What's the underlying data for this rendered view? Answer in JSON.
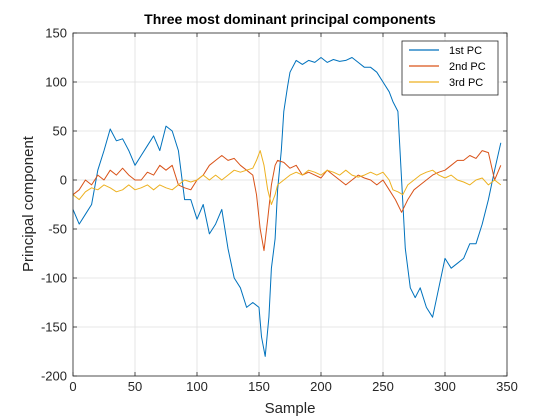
{
  "chart_data": {
    "type": "line",
    "title": "Three most dominant principal components",
    "xlabel": "Sample",
    "ylabel": "Principal component",
    "xlim": [
      0,
      350
    ],
    "ylim": [
      -200,
      150
    ],
    "xticks": [
      "0",
      "50",
      "100",
      "150",
      "200",
      "250",
      "300",
      "350"
    ],
    "yticks": [
      "-200",
      "-150",
      "-100",
      "-50",
      "0",
      "50",
      "100",
      "150"
    ],
    "grid": true,
    "legend_position": "top-right",
    "series": [
      {
        "name": "1st PC",
        "color": "#0072BD",
        "points": [
          [
            0,
            -30
          ],
          [
            5,
            -45
          ],
          [
            10,
            -35
          ],
          [
            15,
            -25
          ],
          [
            20,
            10
          ],
          [
            25,
            30
          ],
          [
            30,
            52
          ],
          [
            35,
            40
          ],
          [
            40,
            42
          ],
          [
            45,
            30
          ],
          [
            50,
            15
          ],
          [
            55,
            25
          ],
          [
            60,
            35
          ],
          [
            65,
            45
          ],
          [
            70,
            30
          ],
          [
            75,
            55
          ],
          [
            80,
            50
          ],
          [
            85,
            30
          ],
          [
            90,
            -20
          ],
          [
            95,
            -20
          ],
          [
            100,
            -40
          ],
          [
            105,
            -25
          ],
          [
            110,
            -55
          ],
          [
            115,
            -45
          ],
          [
            120,
            -30
          ],
          [
            125,
            -70
          ],
          [
            130,
            -100
          ],
          [
            135,
            -110
          ],
          [
            140,
            -130
          ],
          [
            145,
            -125
          ],
          [
            150,
            -130
          ],
          [
            152,
            -160
          ],
          [
            155,
            -180
          ],
          [
            158,
            -140
          ],
          [
            160,
            -90
          ],
          [
            163,
            -60
          ],
          [
            165,
            -10
          ],
          [
            168,
            30
          ],
          [
            170,
            70
          ],
          [
            173,
            95
          ],
          [
            175,
            110
          ],
          [
            180,
            122
          ],
          [
            185,
            118
          ],
          [
            190,
            122
          ],
          [
            195,
            120
          ],
          [
            200,
            125
          ],
          [
            205,
            120
          ],
          [
            210,
            123
          ],
          [
            215,
            121
          ],
          [
            220,
            122
          ],
          [
            225,
            125
          ],
          [
            230,
            120
          ],
          [
            235,
            115
          ],
          [
            240,
            115
          ],
          [
            245,
            110
          ],
          [
            250,
            100
          ],
          [
            255,
            90
          ],
          [
            258,
            80
          ],
          [
            262,
            70
          ],
          [
            265,
            0
          ],
          [
            268,
            -70
          ],
          [
            272,
            -110
          ],
          [
            276,
            -120
          ],
          [
            280,
            -110
          ],
          [
            285,
            -130
          ],
          [
            290,
            -140
          ],
          [
            295,
            -110
          ],
          [
            300,
            -80
          ],
          [
            305,
            -90
          ],
          [
            310,
            -85
          ],
          [
            315,
            -80
          ],
          [
            320,
            -65
          ],
          [
            325,
            -65
          ],
          [
            330,
            -45
          ],
          [
            335,
            -20
          ],
          [
            340,
            10
          ],
          [
            345,
            38
          ]
        ]
      },
      {
        "name": "2nd PC",
        "color": "#D95319",
        "points": [
          [
            0,
            -15
          ],
          [
            5,
            -10
          ],
          [
            10,
            0
          ],
          [
            15,
            -5
          ],
          [
            20,
            5
          ],
          [
            25,
            0
          ],
          [
            30,
            10
          ],
          [
            35,
            5
          ],
          [
            40,
            12
          ],
          [
            45,
            5
          ],
          [
            50,
            0
          ],
          [
            55,
            0
          ],
          [
            60,
            8
          ],
          [
            65,
            5
          ],
          [
            70,
            15
          ],
          [
            75,
            10
          ],
          [
            80,
            15
          ],
          [
            85,
            -5
          ],
          [
            90,
            -8
          ],
          [
            95,
            -10
          ],
          [
            100,
            0
          ],
          [
            105,
            5
          ],
          [
            110,
            15
          ],
          [
            115,
            20
          ],
          [
            120,
            25
          ],
          [
            125,
            20
          ],
          [
            130,
            22
          ],
          [
            135,
            15
          ],
          [
            140,
            10
          ],
          [
            145,
            5
          ],
          [
            148,
            -15
          ],
          [
            151,
            -50
          ],
          [
            154,
            -72
          ],
          [
            157,
            -40
          ],
          [
            160,
            -5
          ],
          [
            163,
            15
          ],
          [
            165,
            20
          ],
          [
            170,
            18
          ],
          [
            175,
            12
          ],
          [
            180,
            15
          ],
          [
            185,
            5
          ],
          [
            190,
            8
          ],
          [
            195,
            5
          ],
          [
            200,
            2
          ],
          [
            205,
            10
          ],
          [
            210,
            5
          ],
          [
            215,
            0
          ],
          [
            220,
            -5
          ],
          [
            225,
            0
          ],
          [
            230,
            5
          ],
          [
            235,
            2
          ],
          [
            240,
            0
          ],
          [
            245,
            -5
          ],
          [
            250,
            0
          ],
          [
            255,
            -10
          ],
          [
            260,
            -20
          ],
          [
            265,
            -33
          ],
          [
            270,
            -20
          ],
          [
            275,
            -10
          ],
          [
            280,
            -5
          ],
          [
            285,
            0
          ],
          [
            290,
            5
          ],
          [
            295,
            8
          ],
          [
            300,
            10
          ],
          [
            305,
            15
          ],
          [
            310,
            20
          ],
          [
            315,
            20
          ],
          [
            320,
            25
          ],
          [
            325,
            22
          ],
          [
            330,
            30
          ],
          [
            335,
            28
          ],
          [
            340,
            0
          ],
          [
            345,
            15
          ]
        ]
      },
      {
        "name": "3rd PC",
        "color": "#EDB120",
        "points": [
          [
            0,
            -15
          ],
          [
            5,
            -20
          ],
          [
            10,
            -12
          ],
          [
            15,
            -8
          ],
          [
            20,
            -10
          ],
          [
            25,
            -5
          ],
          [
            30,
            -8
          ],
          [
            35,
            -12
          ],
          [
            40,
            -10
          ],
          [
            45,
            -5
          ],
          [
            50,
            -10
          ],
          [
            55,
            -8
          ],
          [
            60,
            -5
          ],
          [
            65,
            -10
          ],
          [
            70,
            -5
          ],
          [
            75,
            -8
          ],
          [
            80,
            -10
          ],
          [
            85,
            -5
          ],
          [
            90,
            0
          ],
          [
            95,
            -2
          ],
          [
            100,
            0
          ],
          [
            105,
            5
          ],
          [
            110,
            0
          ],
          [
            115,
            5
          ],
          [
            120,
            0
          ],
          [
            125,
            5
          ],
          [
            130,
            10
          ],
          [
            135,
            8
          ],
          [
            140,
            10
          ],
          [
            145,
            12
          ],
          [
            148,
            20
          ],
          [
            151,
            30
          ],
          [
            154,
            15
          ],
          [
            157,
            -10
          ],
          [
            160,
            -25
          ],
          [
            163,
            -15
          ],
          [
            165,
            -5
          ],
          [
            170,
            0
          ],
          [
            175,
            5
          ],
          [
            180,
            8
          ],
          [
            185,
            5
          ],
          [
            190,
            10
          ],
          [
            195,
            8
          ],
          [
            200,
            5
          ],
          [
            205,
            10
          ],
          [
            210,
            8
          ],
          [
            215,
            5
          ],
          [
            220,
            10
          ],
          [
            225,
            5
          ],
          [
            230,
            3
          ],
          [
            235,
            5
          ],
          [
            240,
            8
          ],
          [
            245,
            5
          ],
          [
            250,
            8
          ],
          [
            255,
            0
          ],
          [
            258,
            -10
          ],
          [
            262,
            -12
          ],
          [
            266,
            -15
          ],
          [
            270,
            -5
          ],
          [
            275,
            0
          ],
          [
            280,
            5
          ],
          [
            285,
            8
          ],
          [
            290,
            10
          ],
          [
            295,
            5
          ],
          [
            300,
            2
          ],
          [
            305,
            5
          ],
          [
            310,
            0
          ],
          [
            315,
            -2
          ],
          [
            320,
            -5
          ],
          [
            325,
            0
          ],
          [
            330,
            2
          ],
          [
            335,
            -5
          ],
          [
            340,
            0
          ],
          [
            345,
            -5
          ]
        ]
      }
    ]
  }
}
